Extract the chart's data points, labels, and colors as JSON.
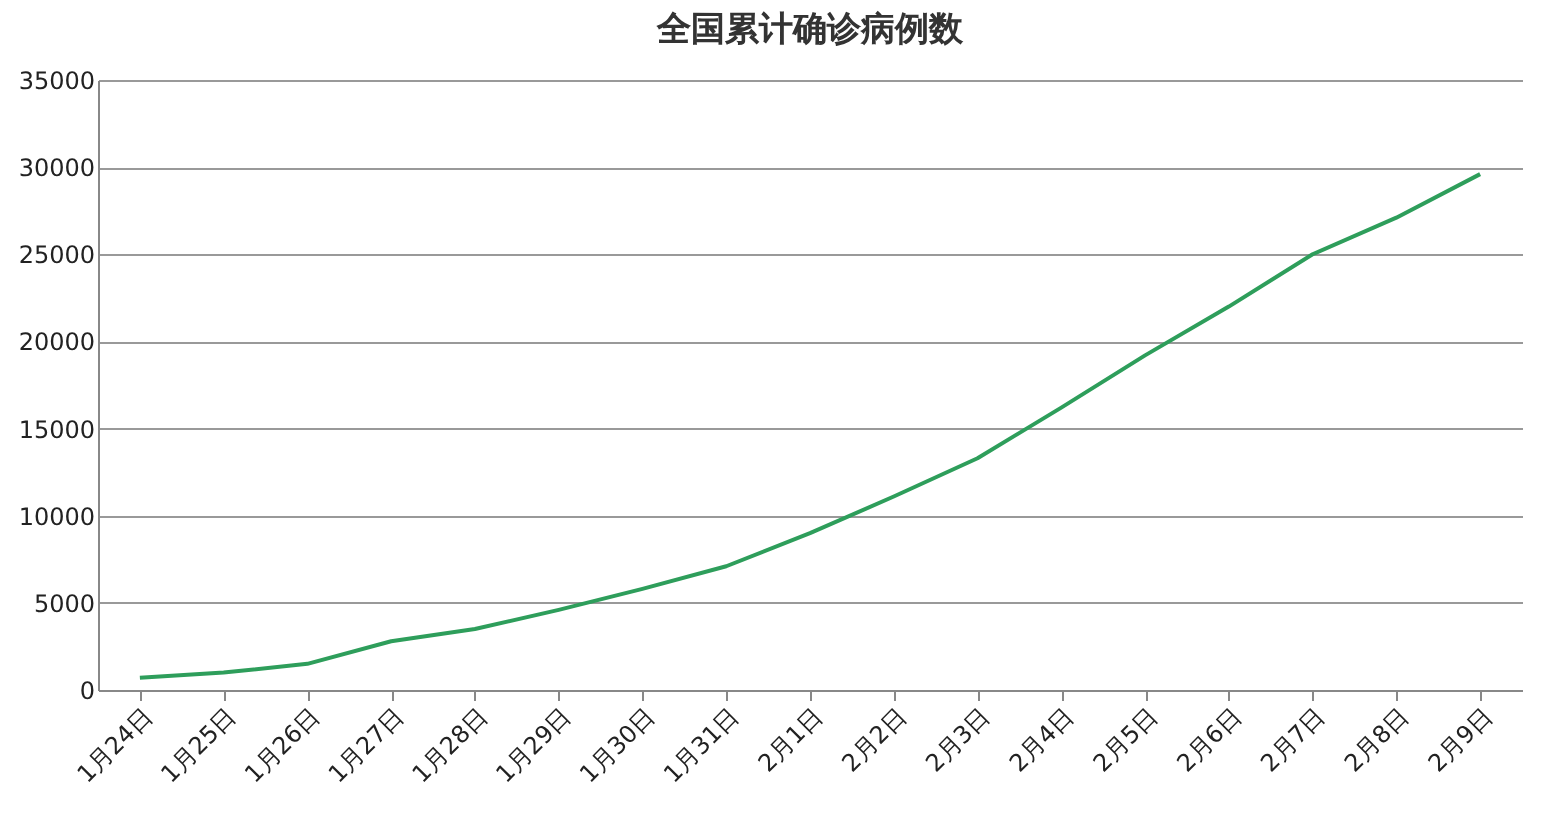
{
  "chart_data": {
    "type": "line",
    "title": "全国累计确诊病例数",
    "categories": [
      "1月24日",
      "1月25日",
      "1月26日",
      "1月27日",
      "1月28日",
      "1月29日",
      "1月30日",
      "1月31日",
      "2月1日",
      "2月2日",
      "2月3日",
      "2月4日",
      "2月5日",
      "2月6日",
      "2月7日",
      "2月8日",
      "2月9日"
    ],
    "series": [
      {
        "color": "#2e9e5b",
        "values": [
          700,
          1000,
          1500,
          2800,
          3500,
          4600,
          5800,
          7100,
          9000,
          11100,
          13300,
          16200,
          19200,
          22000,
          25000,
          27100,
          29600
        ]
      }
    ],
    "ylim": [
      0,
      35000
    ],
    "yticks": [
      0,
      5000,
      10000,
      15000,
      20000,
      25000,
      30000,
      35000
    ],
    "grid": "y",
    "legend": false,
    "marker": "none",
    "line_style": "solid"
  }
}
